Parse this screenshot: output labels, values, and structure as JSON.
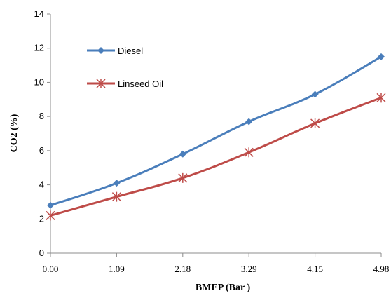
{
  "chart_data": {
    "type": "line",
    "x": [
      "0.00",
      "1.09",
      "2.18",
      "3.29",
      "4.15",
      "4.98"
    ],
    "xlabel": "BMEP  (Bar )",
    "ylabel": "CO2 (%)",
    "ylim": [
      0,
      14
    ],
    "yticks": [
      "0",
      "2",
      "4",
      "6",
      "8",
      "10",
      "12",
      "14"
    ],
    "grid": false,
    "legend": "top-left",
    "series": [
      {
        "name": "Diesel",
        "values": [
          2.8,
          4.1,
          5.8,
          7.7,
          9.3,
          11.5
        ],
        "color": "#4a7ebb",
        "marker": "diamond"
      },
      {
        "name": "Linseed Oil",
        "values": [
          2.2,
          3.3,
          4.4,
          5.9,
          7.6,
          9.1
        ],
        "color": "#be4b48",
        "marker": "asterisk"
      }
    ]
  }
}
